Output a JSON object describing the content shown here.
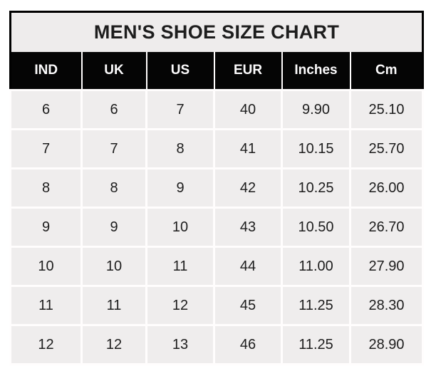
{
  "chart_data": {
    "type": "table",
    "title": "MEN'S SHOE SIZE CHART",
    "columns": [
      "IND",
      "UK",
      "US",
      "EUR",
      "Inches",
      "Cm"
    ],
    "rows": [
      [
        "6",
        "6",
        "7",
        "40",
        "9.90",
        "25.10"
      ],
      [
        "7",
        "7",
        "8",
        "41",
        "10.15",
        "25.70"
      ],
      [
        "8",
        "8",
        "9",
        "42",
        "10.25",
        "26.00"
      ],
      [
        "9",
        "9",
        "10",
        "43",
        "10.50",
        "26.70"
      ],
      [
        "10",
        "10",
        "11",
        "44",
        "11.00",
        "27.90"
      ],
      [
        "11",
        "11",
        "12",
        "45",
        "11.25",
        "28.30"
      ],
      [
        "12",
        "12",
        "13",
        "46",
        "11.25",
        "28.90"
      ]
    ]
  },
  "colors": {
    "page_bg": "#ffffff",
    "outer_border": "#000000",
    "title_bg": "#eeecec",
    "title_text": "#1d1d1d",
    "header_bg": "#050505",
    "header_text": "#fdfcfd",
    "cell_bg": "#efeded",
    "gridline": "#fffdfd",
    "cell_text": "#1d1d1d"
  }
}
